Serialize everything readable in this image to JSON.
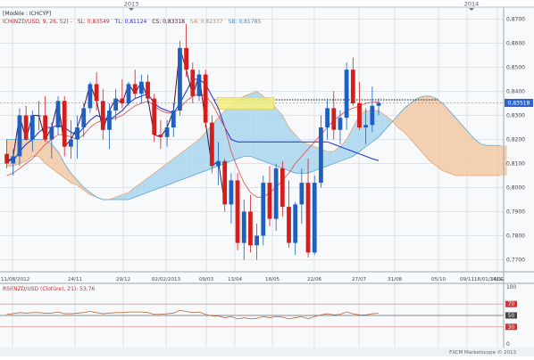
{
  "header": {
    "model_label": "[Modèle : ICHCYP]",
    "ichimoku_label": "ICH(NZD/USD, 9, 26, 52) -",
    "sl_label": "SL: 0,83549",
    "tl_label": "TL: 0,81124",
    "cs_label": "CS: 0,83318",
    "sa_label": "SA: 0,82337",
    "sb_label": "SB: 0,81785"
  },
  "colors": {
    "candle_up": "#1f5fbf",
    "candle_down": "#d41e1e",
    "tenkan": "#1f2fd4",
    "kijun": "#e04a4a",
    "chikou": "#4a1040",
    "cloud_bull": "#a9d6ee",
    "cloud_bear": "#f2c9a4",
    "rsi_line": "#b06a3a",
    "grid": "#dde3ea",
    "price_badge": "#2d63c8"
  },
  "year_markers": [
    "2013",
    "2014"
  ],
  "price_badge": "0,83518",
  "chart_data": [
    {
      "type": "candlestick",
      "title": "",
      "symbol": "NZD/USD",
      "timeframe": "Weekly",
      "ylim": [
        0.765,
        0.875
      ],
      "y_ticks": [
        "0,7700",
        "0,7800",
        "0,7900",
        "0,8000",
        "0,8100",
        "0,8200",
        "0,8300",
        "0,8400",
        "0,8500",
        "0,8600",
        "0,8700"
      ],
      "x_ticks": [
        "11/08/2012",
        "24/11",
        "29/12",
        "02/02/2013",
        "09/03",
        "13/04",
        "18/05",
        "22/06",
        "27/07",
        "31/08",
        "05/10",
        "09/11",
        "14/12",
        "18/01/2014"
      ],
      "candles": [
        {
          "o": 0.814,
          "h": 0.82,
          "l": 0.808,
          "c": 0.81
        },
        {
          "o": 0.81,
          "h": 0.816,
          "l": 0.805,
          "c": 0.813
        },
        {
          "o": 0.813,
          "h": 0.833,
          "l": 0.809,
          "c": 0.83
        },
        {
          "o": 0.83,
          "h": 0.834,
          "l": 0.82,
          "c": 0.82
        },
        {
          "o": 0.82,
          "h": 0.832,
          "l": 0.815,
          "c": 0.83
        },
        {
          "o": 0.83,
          "h": 0.836,
          "l": 0.824,
          "c": 0.83
        },
        {
          "o": 0.83,
          "h": 0.838,
          "l": 0.819,
          "c": 0.82
        },
        {
          "o": 0.82,
          "h": 0.827,
          "l": 0.812,
          "c": 0.825
        },
        {
          "o": 0.825,
          "h": 0.838,
          "l": 0.822,
          "c": 0.836
        },
        {
          "o": 0.836,
          "h": 0.838,
          "l": 0.813,
          "c": 0.817
        },
        {
          "o": 0.817,
          "h": 0.828,
          "l": 0.812,
          "c": 0.82
        },
        {
          "o": 0.82,
          "h": 0.83,
          "l": 0.812,
          "c": 0.825
        },
        {
          "o": 0.825,
          "h": 0.835,
          "l": 0.821,
          "c": 0.833
        },
        {
          "o": 0.833,
          "h": 0.844,
          "l": 0.831,
          "c": 0.843
        },
        {
          "o": 0.843,
          "h": 0.848,
          "l": 0.832,
          "c": 0.836
        },
        {
          "o": 0.836,
          "h": 0.841,
          "l": 0.82,
          "c": 0.824
        },
        {
          "o": 0.824,
          "h": 0.835,
          "l": 0.816,
          "c": 0.832
        },
        {
          "o": 0.832,
          "h": 0.841,
          "l": 0.828,
          "c": 0.837
        },
        {
          "o": 0.837,
          "h": 0.845,
          "l": 0.833,
          "c": 0.835
        },
        {
          "o": 0.835,
          "h": 0.844,
          "l": 0.834,
          "c": 0.843
        },
        {
          "o": 0.843,
          "h": 0.849,
          "l": 0.837,
          "c": 0.839
        },
        {
          "o": 0.839,
          "h": 0.847,
          "l": 0.835,
          "c": 0.844
        },
        {
          "o": 0.844,
          "h": 0.847,
          "l": 0.835,
          "c": 0.837
        },
        {
          "o": 0.837,
          "h": 0.839,
          "l": 0.819,
          "c": 0.822
        },
        {
          "o": 0.822,
          "h": 0.828,
          "l": 0.816,
          "c": 0.821
        },
        {
          "o": 0.821,
          "h": 0.828,
          "l": 0.817,
          "c": 0.825
        },
        {
          "o": 0.825,
          "h": 0.835,
          "l": 0.821,
          "c": 0.832
        },
        {
          "o": 0.832,
          "h": 0.861,
          "l": 0.83,
          "c": 0.858
        },
        {
          "o": 0.858,
          "h": 0.868,
          "l": 0.846,
          "c": 0.849
        },
        {
          "o": 0.849,
          "h": 0.852,
          "l": 0.835,
          "c": 0.838
        },
        {
          "o": 0.838,
          "h": 0.849,
          "l": 0.836,
          "c": 0.847
        },
        {
          "o": 0.847,
          "h": 0.849,
          "l": 0.825,
          "c": 0.827
        },
        {
          "o": 0.827,
          "h": 0.83,
          "l": 0.806,
          "c": 0.809
        },
        {
          "o": 0.809,
          "h": 0.819,
          "l": 0.801,
          "c": 0.811
        },
        {
          "o": 0.811,
          "h": 0.812,
          "l": 0.79,
          "c": 0.793
        },
        {
          "o": 0.793,
          "h": 0.806,
          "l": 0.785,
          "c": 0.803
        },
        {
          "o": 0.803,
          "h": 0.806,
          "l": 0.774,
          "c": 0.777
        },
        {
          "o": 0.777,
          "h": 0.795,
          "l": 0.77,
          "c": 0.79
        },
        {
          "o": 0.79,
          "h": 0.797,
          "l": 0.773,
          "c": 0.776
        },
        {
          "o": 0.776,
          "h": 0.785,
          "l": 0.77,
          "c": 0.78
        },
        {
          "o": 0.78,
          "h": 0.805,
          "l": 0.776,
          "c": 0.802
        },
        {
          "o": 0.802,
          "h": 0.809,
          "l": 0.784,
          "c": 0.787
        },
        {
          "o": 0.787,
          "h": 0.81,
          "l": 0.782,
          "c": 0.808
        },
        {
          "o": 0.808,
          "h": 0.811,
          "l": 0.788,
          "c": 0.792
        },
        {
          "o": 0.792,
          "h": 0.803,
          "l": 0.775,
          "c": 0.777
        },
        {
          "o": 0.777,
          "h": 0.794,
          "l": 0.772,
          "c": 0.793
        },
        {
          "o": 0.793,
          "h": 0.808,
          "l": 0.785,
          "c": 0.802
        },
        {
          "o": 0.802,
          "h": 0.812,
          "l": 0.771,
          "c": 0.773
        },
        {
          "o": 0.773,
          "h": 0.805,
          "l": 0.772,
          "c": 0.802
        },
        {
          "o": 0.802,
          "h": 0.83,
          "l": 0.8,
          "c": 0.825
        },
        {
          "o": 0.825,
          "h": 0.837,
          "l": 0.82,
          "c": 0.833
        },
        {
          "o": 0.833,
          "h": 0.84,
          "l": 0.82,
          "c": 0.824
        },
        {
          "o": 0.824,
          "h": 0.832,
          "l": 0.818,
          "c": 0.829
        },
        {
          "o": 0.829,
          "h": 0.852,
          "l": 0.824,
          "c": 0.849
        },
        {
          "o": 0.849,
          "h": 0.854,
          "l": 0.834,
          "c": 0.835
        },
        {
          "o": 0.835,
          "h": 0.844,
          "l": 0.824,
          "c": 0.825
        },
        {
          "o": 0.825,
          "h": 0.833,
          "l": 0.818,
          "c": 0.826
        },
        {
          "o": 0.826,
          "h": 0.842,
          "l": 0.823,
          "c": 0.834
        },
        {
          "o": 0.834,
          "h": 0.837,
          "l": 0.83,
          "c": 0.8352
        }
      ],
      "tenkan": [
        0.812,
        0.811,
        0.815,
        0.818,
        0.82,
        0.823,
        0.825,
        0.825,
        0.826,
        0.825,
        0.823,
        0.822,
        0.825,
        0.828,
        0.83,
        0.829,
        0.828,
        0.83,
        0.832,
        0.835,
        0.837,
        0.838,
        0.839,
        0.835,
        0.833,
        0.832,
        0.831,
        0.835,
        0.84,
        0.845,
        0.845,
        0.843,
        0.838,
        0.833,
        0.825,
        0.82,
        0.819,
        0.819,
        0.819,
        0.819,
        0.819,
        0.819,
        0.819,
        0.819,
        0.819,
        0.819,
        0.819,
        0.819,
        0.819,
        0.819,
        0.819,
        0.818,
        0.817,
        0.816,
        0.815,
        0.814,
        0.813,
        0.812,
        0.8112
      ],
      "kijun": [
        0.805,
        0.806,
        0.808,
        0.81,
        0.812,
        0.815,
        0.818,
        0.82,
        0.822,
        0.822,
        0.821,
        0.82,
        0.822,
        0.825,
        0.827,
        0.828,
        0.828,
        0.829,
        0.83,
        0.832,
        0.834,
        0.835,
        0.836,
        0.834,
        0.832,
        0.831,
        0.831,
        0.833,
        0.836,
        0.838,
        0.839,
        0.838,
        0.835,
        0.83,
        0.825,
        0.815,
        0.808,
        0.802,
        0.798,
        0.796,
        0.796,
        0.798,
        0.8,
        0.803,
        0.806,
        0.81,
        0.813,
        0.816,
        0.819,
        0.822,
        0.825,
        0.828,
        0.83,
        0.832,
        0.833,
        0.834,
        0.835,
        0.8355,
        0.8355
      ],
      "chikou": [
        0.81,
        0.813,
        0.83,
        0.82,
        0.83,
        0.83,
        0.82,
        0.825,
        0.836,
        0.817,
        0.82,
        0.825,
        0.833,
        0.843,
        0.836,
        0.824,
        0.832,
        0.837,
        0.835,
        0.843,
        0.839,
        0.844,
        0.837,
        0.822,
        0.821,
        0.825,
        0.832,
        0.858,
        0.849,
        0.838,
        0.847,
        0.827,
        0.809,
        0.811,
        0.793
      ],
      "senkou_a": [
        0.809,
        0.809,
        0.81,
        0.811,
        0.813,
        0.813,
        0.81,
        0.808,
        0.806,
        0.804,
        0.802,
        0.801,
        0.799,
        0.797,
        0.796,
        0.795,
        0.795,
        0.796,
        0.797,
        0.798,
        0.8,
        0.802,
        0.804,
        0.806,
        0.808,
        0.81,
        0.812,
        0.814,
        0.816,
        0.818,
        0.82,
        0.823,
        0.826,
        0.829,
        0.832,
        0.834,
        0.836,
        0.838,
        0.839,
        0.84,
        0.838,
        0.836,
        0.833,
        0.83,
        0.825,
        0.822,
        0.819,
        0.818,
        0.817,
        0.816,
        0.815,
        0.815,
        0.817,
        0.82,
        0.825,
        0.83,
        0.832,
        0.832,
        0.832,
        0.83,
        0.828,
        0.825,
        0.823,
        0.82,
        0.817,
        0.814,
        0.811,
        0.809,
        0.807,
        0.806,
        0.805,
        0.805,
        0.805,
        0.805,
        0.805,
        0.805,
        0.805,
        0.805,
        0.805,
        0.805,
        0.805,
        0.805,
        0.805,
        0.805,
        0.805
      ],
      "senkou_b": [
        0.82,
        0.82,
        0.82,
        0.82,
        0.82,
        0.82,
        0.82,
        0.818,
        0.815,
        0.81,
        0.806,
        0.803,
        0.8,
        0.798,
        0.796,
        0.795,
        0.795,
        0.795,
        0.795,
        0.795,
        0.796,
        0.797,
        0.798,
        0.799,
        0.8,
        0.801,
        0.802,
        0.803,
        0.804,
        0.805,
        0.806,
        0.807,
        0.808,
        0.809,
        0.81,
        0.811,
        0.812,
        0.813,
        0.813,
        0.812,
        0.811,
        0.81,
        0.809,
        0.808,
        0.807,
        0.806,
        0.806,
        0.806,
        0.807,
        0.808,
        0.809,
        0.81,
        0.811,
        0.812,
        0.813,
        0.815,
        0.817,
        0.819,
        0.821,
        0.824,
        0.827,
        0.83,
        0.833,
        0.835,
        0.837,
        0.838,
        0.838,
        0.837,
        0.835,
        0.832,
        0.829,
        0.826,
        0.823,
        0.82,
        0.818,
        0.8175,
        0.8175,
        0.8175,
        0.8175,
        0.8175,
        0.8175,
        0.8175,
        0.8175,
        0.8175,
        0.8175
      ],
      "levels": [
        {
          "name": "resistance-line",
          "y": 0.8365
        },
        {
          "name": "current-price",
          "y": 0.8352
        }
      ]
    },
    {
      "type": "line",
      "title": "RSI(NZD/USD (Clotûre), 21): 53,76",
      "ylim": [
        0,
        100
      ],
      "y_ticks": [
        "100",
        "70",
        "50",
        "30",
        "0"
      ],
      "reference_lines": [
        70,
        50,
        30
      ],
      "values": [
        52,
        53,
        55,
        54,
        55,
        55,
        54,
        54,
        56,
        53,
        53,
        54,
        55,
        57,
        55,
        53,
        54,
        55,
        55,
        56,
        56,
        56,
        55,
        52,
        52,
        53,
        54,
        59,
        57,
        55,
        56,
        52,
        49,
        49,
        46,
        48,
        44,
        46,
        44,
        45,
        48,
        46,
        48,
        47,
        44,
        46,
        48,
        44,
        48,
        51,
        53,
        51,
        52,
        56,
        53,
        51,
        51,
        53,
        53.76
      ]
    }
  ],
  "footer": {
    "copyright": "FXCM Marketscope © 2013"
  }
}
